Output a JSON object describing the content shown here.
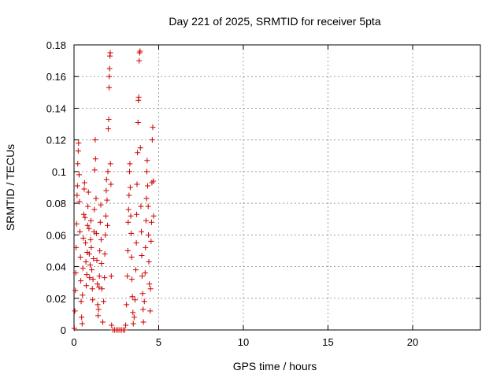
{
  "chart_data": {
    "type": "scatter",
    "title": "Day 221 of 2025, SRMTID for receiver 5pta",
    "xlabel": "GPS time / hours",
    "ylabel": "SRMTID / TECUs",
    "xlim": [
      0,
      24
    ],
    "ylim": [
      0,
      0.18
    ],
    "x_ticks": [
      0,
      5,
      10,
      15,
      20
    ],
    "x_tick_labels": [
      "0",
      "5",
      "10",
      "15",
      "20"
    ],
    "y_ticks": [
      0,
      0.02,
      0.04,
      0.06,
      0.08,
      0.1,
      0.12,
      0.14,
      0.16,
      0.18
    ],
    "y_tick_labels": [
      "0",
      "0.02",
      "0.04",
      "0.06",
      "0.08",
      "0.1",
      "0.12",
      "0.14",
      "0.16",
      "0.18"
    ],
    "grid": true,
    "marker": "plus",
    "color": "#cc0000",
    "points": [
      [
        0.02,
        0.001
      ],
      [
        0.05,
        0.012
      ],
      [
        0.08,
        0.025
      ],
      [
        0.1,
        0.036
      ],
      [
        0.12,
        0.052
      ],
      [
        0.15,
        0.067
      ],
      [
        0.18,
        0.085
      ],
      [
        0.2,
        0.091
      ],
      [
        0.22,
        0.105
      ],
      [
        0.25,
        0.113
      ],
      [
        0.27,
        0.118
      ],
      [
        0.3,
        0.098
      ],
      [
        0.32,
        0.081
      ],
      [
        0.35,
        0.062
      ],
      [
        0.38,
        0.046
      ],
      [
        0.4,
        0.031
      ],
      [
        0.42,
        0.018
      ],
      [
        0.45,
        0.008
      ],
      [
        0.48,
        0.004
      ],
      [
        0.5,
        0.022
      ],
      [
        0.52,
        0.039
      ],
      [
        0.55,
        0.058
      ],
      [
        0.58,
        0.073
      ],
      [
        0.6,
        0.089
      ],
      [
        0.62,
        0.093
      ],
      [
        0.65,
        0.071
      ],
      [
        0.68,
        0.055
      ],
      [
        0.7,
        0.043
      ],
      [
        0.72,
        0.028
      ],
      [
        0.75,
        0.035
      ],
      [
        0.78,
        0.049
      ],
      [
        0.8,
        0.066
      ],
      [
        0.82,
        0.078
      ],
      [
        0.85,
        0.087
      ],
      [
        0.88,
        0.064
      ],
      [
        0.9,
        0.048
      ],
      [
        0.92,
        0.033
      ],
      [
        0.95,
        0.041
      ],
      [
        0.98,
        0.057
      ],
      [
        1.0,
        0.069
      ],
      [
        1.02,
        0.052
      ],
      [
        1.05,
        0.038
      ],
      [
        1.08,
        0.026
      ],
      [
        1.1,
        0.019
      ],
      [
        1.12,
        0.032
      ],
      [
        1.15,
        0.045
      ],
      [
        1.18,
        0.062
      ],
      [
        1.2,
        0.076
      ],
      [
        1.22,
        0.101
      ],
      [
        1.25,
        0.12
      ],
      [
        1.27,
        0.108
      ],
      [
        1.3,
        0.083
      ],
      [
        1.32,
        0.061
      ],
      [
        1.35,
        0.044
      ],
      [
        1.38,
        0.029
      ],
      [
        1.4,
        0.016
      ],
      [
        1.42,
        0.009
      ],
      [
        1.45,
        0.013
      ],
      [
        1.48,
        0.027
      ],
      [
        1.5,
        0.034
      ],
      [
        1.52,
        0.05
      ],
      [
        1.55,
        0.068
      ],
      [
        1.58,
        0.079
      ],
      [
        1.6,
        0.057
      ],
      [
        1.62,
        0.042
      ],
      [
        1.65,
        0.026
      ],
      [
        1.7,
        0.005
      ],
      [
        1.75,
        0.018
      ],
      [
        1.8,
        0.033
      ],
      [
        1.82,
        0.048
      ],
      [
        1.85,
        0.06
      ],
      [
        1.88,
        0.072
      ],
      [
        1.9,
        0.088
      ],
      [
        1.92,
        0.095
      ],
      [
        1.95,
        0.082
      ],
      [
        1.98,
        0.066
      ],
      [
        2.0,
        0.1
      ],
      [
        2.02,
        0.127
      ],
      [
        2.05,
        0.133
      ],
      [
        2.07,
        0.153
      ],
      [
        2.08,
        0.16
      ],
      [
        2.1,
        0.165
      ],
      [
        2.12,
        0.173
      ],
      [
        2.14,
        0.175
      ],
      [
        2.15,
        0.105
      ],
      [
        2.18,
        0.092
      ],
      [
        2.2,
        0.034
      ],
      [
        2.22,
        0.003
      ],
      [
        2.3,
        0.0
      ],
      [
        2.4,
        0.0
      ],
      [
        2.5,
        0.0
      ],
      [
        2.6,
        0.0
      ],
      [
        2.7,
        0.0
      ],
      [
        2.8,
        0.0
      ],
      [
        2.9,
        0.0
      ],
      [
        3.0,
        0.0
      ],
      [
        3.05,
        0.003
      ],
      [
        3.1,
        0.016
      ],
      [
        3.15,
        0.034
      ],
      [
        3.18,
        0.05
      ],
      [
        3.2,
        0.068
      ],
      [
        3.22,
        0.076
      ],
      [
        3.25,
        0.085
      ],
      [
        3.28,
        0.1
      ],
      [
        3.3,
        0.105
      ],
      [
        3.32,
        0.09
      ],
      [
        3.35,
        0.072
      ],
      [
        3.38,
        0.061
      ],
      [
        3.4,
        0.046
      ],
      [
        3.42,
        0.032
      ],
      [
        3.45,
        0.021
      ],
      [
        3.48,
        0.011
      ],
      [
        3.5,
        0.004
      ],
      [
        3.55,
        0.008
      ],
      [
        3.6,
        0.019
      ],
      [
        3.65,
        0.038
      ],
      [
        3.68,
        0.055
      ],
      [
        3.7,
        0.073
      ],
      [
        3.72,
        0.092
      ],
      [
        3.75,
        0.112
      ],
      [
        3.78,
        0.131
      ],
      [
        3.8,
        0.145
      ],
      [
        3.82,
        0.147
      ],
      [
        3.85,
        0.17
      ],
      [
        3.87,
        0.175
      ],
      [
        3.9,
        0.176
      ],
      [
        3.92,
        0.115
      ],
      [
        3.95,
        0.078
      ],
      [
        3.98,
        0.062
      ],
      [
        4.0,
        0.047
      ],
      [
        4.02,
        0.034
      ],
      [
        4.05,
        0.023
      ],
      [
        4.08,
        0.013
      ],
      [
        4.1,
        0.005
      ],
      [
        4.15,
        0.018
      ],
      [
        4.2,
        0.036
      ],
      [
        4.22,
        0.052
      ],
      [
        4.25,
        0.069
      ],
      [
        4.28,
        0.083
      ],
      [
        4.3,
        0.1
      ],
      [
        4.32,
        0.107
      ],
      [
        4.35,
        0.091
      ],
      [
        4.38,
        0.078
      ],
      [
        4.4,
        0.06
      ],
      [
        4.42,
        0.043
      ],
      [
        4.45,
        0.029
      ],
      [
        4.5,
        0.012
      ],
      [
        4.52,
        0.026
      ],
      [
        4.55,
        0.056
      ],
      [
        4.58,
        0.068
      ],
      [
        4.6,
        0.093
      ],
      [
        4.62,
        0.12
      ],
      [
        4.65,
        0.128
      ],
      [
        4.68,
        0.094
      ],
      [
        4.7,
        0.072
      ]
    ]
  }
}
